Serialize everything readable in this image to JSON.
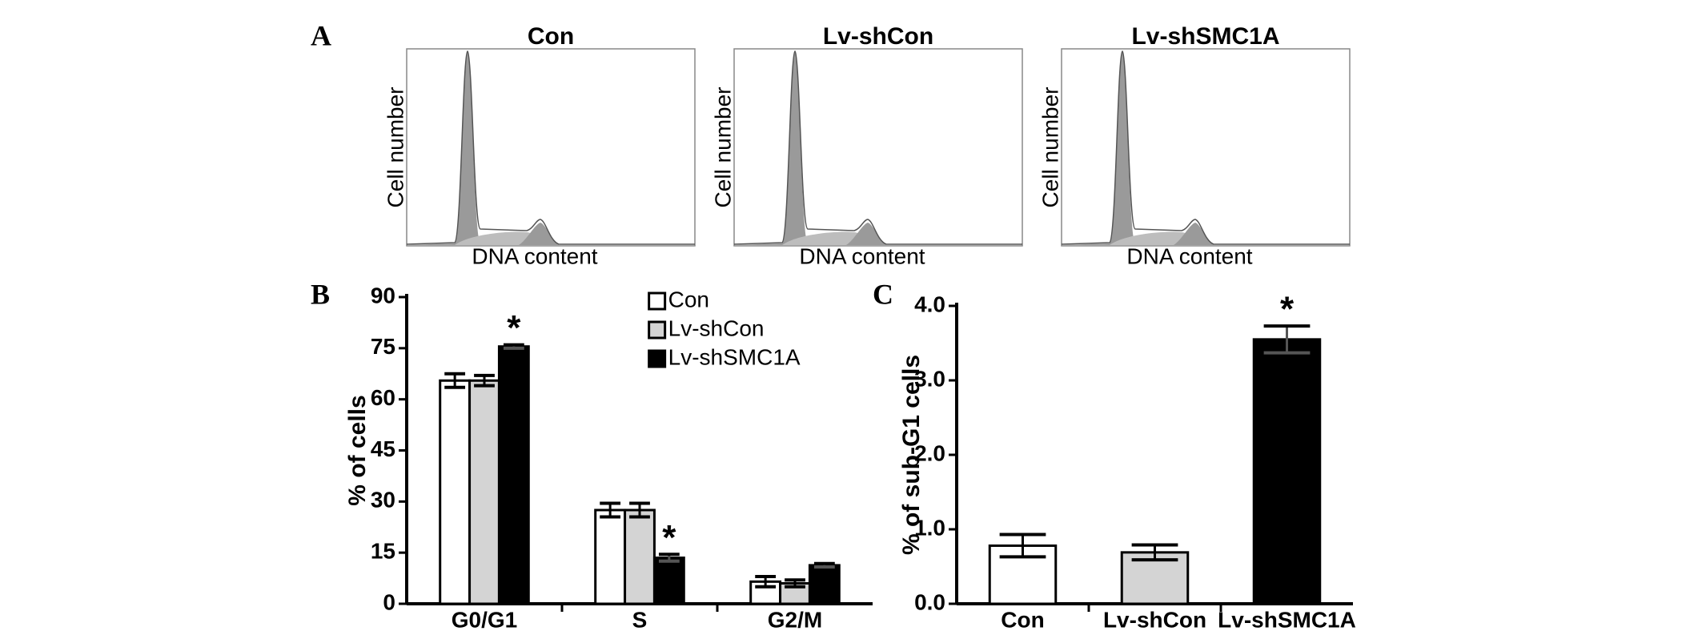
{
  "panel_labels": [
    "A",
    "B",
    "C"
  ],
  "histograms": [
    {
      "title": "Con",
      "x_label": "DNA content",
      "y_label": "Cell number"
    },
    {
      "title": "Lv-shCon",
      "x_label": "DNA content",
      "y_label": "Cell number"
    },
    {
      "title": "Lv-shSMC1A",
      "x_label": "DNA content",
      "y_label": "Cell number"
    }
  ],
  "chart_data": [
    {
      "type": "grouped-bar",
      "y_label": "% of cells",
      "categories": [
        "G0/G1",
        "S",
        "G2/M"
      ],
      "series": [
        {
          "name": "Con",
          "color": "#ffffff",
          "values": [
            65.5,
            27.5,
            6.5
          ],
          "errors": [
            2,
            2,
            1.5
          ],
          "significance": [
            null,
            null,
            null
          ]
        },
        {
          "name": "Lv-shCon",
          "color": "#d4d4d4",
          "values": [
            65.5,
            27.5,
            6
          ],
          "errors": [
            1.5,
            2,
            1
          ],
          "significance": [
            null,
            null,
            null
          ]
        },
        {
          "name": "Lv-shSMC1A",
          "color": "#000000",
          "values": [
            75.5,
            13.5,
            11.3
          ],
          "errors": [
            0.5,
            1,
            0.5
          ],
          "significance": [
            "*",
            "*",
            null
          ]
        }
      ],
      "ylim": [
        0,
        90
      ],
      "yticks": [
        0,
        15,
        30,
        45,
        60,
        75,
        90
      ],
      "legend": "top-right"
    },
    {
      "type": "bar",
      "y_label": "% of sub-G1 cells",
      "categories": [
        "Con",
        "Lv-shCon",
        "Lv-shSMC1A"
      ],
      "values": [
        0.78,
        0.69,
        3.55
      ],
      "errors": [
        0.15,
        0.1,
        0.18
      ],
      "significance": [
        null,
        null,
        "*"
      ],
      "colors": [
        "#ffffff",
        "#d4d4d4",
        "#000000"
      ],
      "ylim": [
        0,
        4
      ],
      "yticks": [
        {
          "value": 0,
          "label": "0.0"
        },
        {
          "value": 1,
          "label": "1.0"
        },
        {
          "value": 2,
          "label": "2.0"
        },
        {
          "value": 3,
          "label": "3.0"
        },
        {
          "value": 4,
          "label": "4.0"
        }
      ]
    }
  ]
}
